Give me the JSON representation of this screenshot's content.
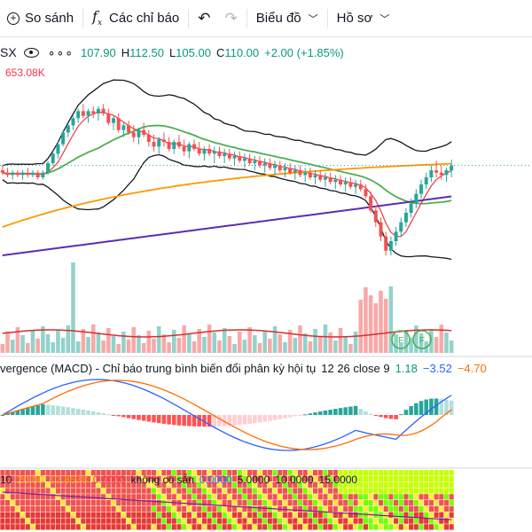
{
  "toolbar": {
    "compare_label": "So sánh",
    "indicators_label": "Các chỉ báo",
    "chart_label": "Biểu đồ",
    "profile_label": "Hồ sơ"
  },
  "legend": {
    "symbol": "SX",
    "open": "107.90",
    "high": "112.50",
    "low": "105.00",
    "close": "110.00",
    "change": "+2.00 (+1.85%)",
    "o_prefix": "",
    "h_prefix": "H",
    "l_prefix": "L",
    "c_prefix": "C",
    "volume": "653.08K"
  },
  "macd_legend": {
    "title": "vergence (MACD) - Chỉ báo trung bình biến đổi phân kỳ hội tụ",
    "params": "12 26 close 9",
    "v1": "1.18",
    "v2": "−3.52",
    "v3": "−4.70"
  },
  "ind_legend": {
    "p1": "10",
    "p2": "20.00",
    "p3": "12.8678",
    "p4": "0.0000",
    "na": "không có sẵn",
    "p5": "0.0000",
    "p6": "5.0000",
    "p7": "10.0000",
    "p8": "15.0000"
  },
  "colors": {
    "up": "#26a69a",
    "down": "#ef5350",
    "ma_red": "#f23645",
    "ma_green": "#4caf50",
    "ma_orange": "#ff9800",
    "ma_purple": "#5b2fb3",
    "bb": "#131722",
    "macd_line": "#2962ff",
    "signal_line": "#ff6d00"
  },
  "chart_data": {
    "type": "candlestick",
    "ohlc_last": {
      "open": 107.9,
      "high": 112.5,
      "low": 105.0,
      "close": 110.0
    },
    "candles": [
      [
        108,
        110,
        106,
        107
      ],
      [
        107,
        109,
        105,
        106
      ],
      [
        106,
        108,
        104,
        107
      ],
      [
        107,
        108,
        105,
        106
      ],
      [
        106,
        108,
        104,
        107
      ],
      [
        107,
        109,
        105,
        106
      ],
      [
        106,
        108,
        105,
        107
      ],
      [
        107,
        108,
        104,
        105
      ],
      [
        105,
        108,
        104,
        107
      ],
      [
        107,
        112,
        106,
        111
      ],
      [
        111,
        116,
        110,
        115
      ],
      [
        115,
        120,
        113,
        119
      ],
      [
        119,
        125,
        118,
        124
      ],
      [
        124,
        128,
        122,
        127
      ],
      [
        127,
        131,
        125,
        130
      ],
      [
        130,
        134,
        128,
        133
      ],
      [
        133,
        136,
        130,
        131
      ],
      [
        131,
        134,
        128,
        133
      ],
      [
        133,
        135,
        130,
        132
      ],
      [
        132,
        135,
        129,
        134
      ],
      [
        134,
        136,
        131,
        132
      ],
      [
        132,
        134,
        127,
        128
      ],
      [
        128,
        131,
        125,
        130
      ],
      [
        130,
        132,
        124,
        125
      ],
      [
        125,
        128,
        122,
        127
      ],
      [
        127,
        129,
        123,
        124
      ],
      [
        124,
        127,
        120,
        122
      ],
      [
        122,
        126,
        119,
        125
      ],
      [
        125,
        128,
        122,
        123
      ],
      [
        123,
        125,
        118,
        120
      ],
      [
        120,
        123,
        116,
        118
      ],
      [
        118,
        122,
        115,
        121
      ],
      [
        121,
        124,
        118,
        120
      ],
      [
        120,
        122,
        116,
        117
      ],
      [
        117,
        121,
        115,
        120
      ],
      [
        120,
        123,
        117,
        118
      ],
      [
        118,
        121,
        114,
        116
      ],
      [
        116,
        120,
        113,
        119
      ],
      [
        119,
        121,
        116,
        117
      ],
      [
        117,
        120,
        114,
        115
      ],
      [
        115,
        118,
        112,
        117
      ],
      [
        117,
        119,
        114,
        115
      ],
      [
        115,
        118,
        111,
        116
      ],
      [
        116,
        118,
        113,
        114
      ],
      [
        114,
        117,
        111,
        115
      ],
      [
        115,
        117,
        112,
        113
      ],
      [
        113,
        116,
        110,
        114
      ],
      [
        114,
        116,
        111,
        112
      ],
      [
        112,
        115,
        109,
        113
      ],
      [
        113,
        115,
        110,
        111
      ],
      [
        111,
        114,
        108,
        112
      ],
      [
        112,
        114,
        109,
        110
      ],
      [
        110,
        113,
        107,
        111
      ],
      [
        111,
        113,
        108,
        109
      ],
      [
        109,
        112,
        106,
        110
      ],
      [
        110,
        112,
        107,
        108
      ],
      [
        108,
        111,
        105,
        109
      ],
      [
        109,
        111,
        106,
        107
      ],
      [
        107,
        110,
        104,
        108
      ],
      [
        108,
        110,
        105,
        106
      ],
      [
        106,
        109,
        103,
        107
      ],
      [
        107,
        109,
        104,
        105
      ],
      [
        105,
        108,
        102,
        106
      ],
      [
        106,
        108,
        103,
        104
      ],
      [
        104,
        107,
        101,
        105
      ],
      [
        105,
        107,
        102,
        103
      ],
      [
        103,
        106,
        100,
        104
      ],
      [
        104,
        106,
        101,
        102
      ],
      [
        102,
        105,
        99,
        103
      ],
      [
        103,
        105,
        100,
        101
      ],
      [
        101,
        104,
        98,
        102
      ],
      [
        102,
        104,
        99,
        100
      ],
      [
        100,
        102,
        96,
        97
      ],
      [
        97,
        99,
        90,
        91
      ],
      [
        91,
        93,
        84,
        86
      ],
      [
        86,
        88,
        78,
        80
      ],
      [
        80,
        82,
        72,
        74
      ],
      [
        74,
        80,
        72,
        78
      ],
      [
        78,
        84,
        76,
        82
      ],
      [
        82,
        88,
        80,
        86
      ],
      [
        86,
        92,
        84,
        90
      ],
      [
        90,
        96,
        88,
        94
      ],
      [
        94,
        100,
        92,
        98
      ],
      [
        98,
        104,
        96,
        102
      ],
      [
        102,
        107,
        100,
        105
      ],
      [
        105,
        110,
        103,
        108
      ],
      [
        108,
        112,
        105,
        107
      ],
      [
        107,
        110,
        104,
        106
      ],
      [
        106,
        109,
        103,
        108
      ],
      [
        107.9,
        112.5,
        105,
        110
      ]
    ]
  }
}
